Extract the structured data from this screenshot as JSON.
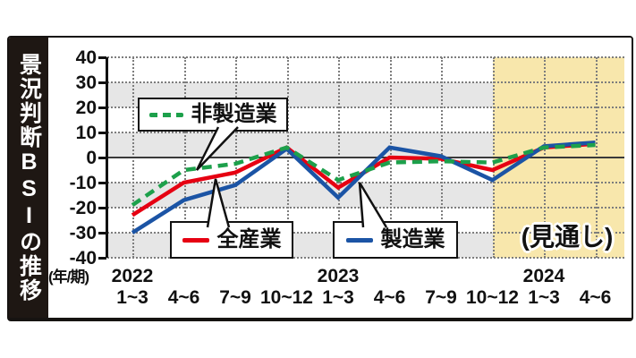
{
  "figure_title": "景況判断BSIの推移",
  "y_axis": {
    "ticks": [
      "40",
      "30",
      "20",
      "10",
      "0",
      "-10",
      "-20",
      "-30",
      "-40"
    ],
    "axis_caption": "(年/期)"
  },
  "x_axis": {
    "quarters": [
      "1~3",
      "4~6",
      "7~9",
      "10~12",
      "1~3",
      "4~6",
      "7~9",
      "10~12",
      "1~3",
      "4~6"
    ],
    "years": [
      {
        "label": "2022",
        "at": 0
      },
      {
        "label": "2023",
        "at": 4
      },
      {
        "label": "2024",
        "at": 8
      }
    ]
  },
  "legend": {
    "non_manufacturing": "非製造業",
    "all_industries": "全産業",
    "manufacturing": "製造業"
  },
  "forecast_label": "(見通し)",
  "colors": {
    "non_manufacturing_green": "#1da04b",
    "all_industries_red": "#e60012",
    "manufacturing_blue": "#1b54a5",
    "forecast_bg": "#f8e7ac",
    "band_gray": "#e6e6e6",
    "banner_bg": "#1e1713"
  },
  "chart_data": {
    "type": "line",
    "title": "景況判断BSIの推移",
    "ylabel": "景況判断BSI",
    "ylim": [
      -40,
      40
    ],
    "grid": true,
    "legend_position": "inside-callouts",
    "categories": [
      "2022 1~3",
      "2022 4~6",
      "2022 7~9",
      "2022 10~12",
      "2023 1~3",
      "2023 4~6",
      "2023 7~9",
      "2023 10~12",
      "2024 1~3",
      "2024 4~6"
    ],
    "forecast_start_index": 7,
    "series": [
      {
        "name": "非製造業",
        "color": "#1da04b",
        "line_style": "dashed",
        "values": [
          -19,
          -5,
          -2.5,
          4,
          -9,
          -2,
          -1.5,
          -2,
          4,
          5
        ]
      },
      {
        "name": "全産業",
        "color": "#e60012",
        "line_style": "solid",
        "values": [
          -23,
          -10,
          -6,
          4,
          -12,
          0,
          -0.5,
          -5,
          4,
          5.5
        ]
      },
      {
        "name": "製造業",
        "color": "#1b54a5",
        "line_style": "solid",
        "values": [
          -30,
          -17,
          -11,
          3.5,
          -16,
          4,
          0.5,
          -9,
          4.5,
          6
        ]
      }
    ]
  }
}
